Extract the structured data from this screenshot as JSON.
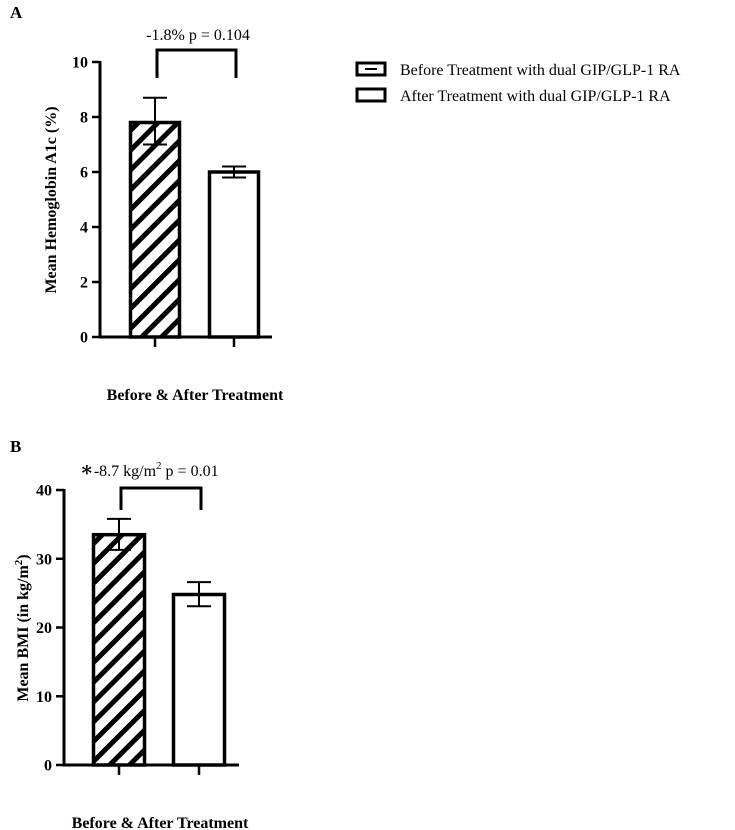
{
  "legend": {
    "entries": [
      {
        "label": "Before Treatment with dual GIP/GLP-1 RA",
        "pattern": "hatched"
      },
      {
        "label": "After Treatment with dual GIP/GLP-1 RA",
        "pattern": "open"
      }
    ]
  },
  "chart_data": [
    {
      "type": "bar",
      "panel_label": "A",
      "ylabel": "Mean Hemoglobin  A1c (%)",
      "xlabel": "Before & After Treatment",
      "ylim": [
        0,
        10
      ],
      "yticks": [
        "0",
        "2",
        "4",
        "6",
        "8",
        "10"
      ],
      "categories": [
        "Before Treatment with dual GIP/GLP-1 RA",
        "After Treatment with dual GIP/GLP-1 RA"
      ],
      "values": [
        7.8,
        6.0
      ],
      "error_low": [
        7.0,
        5.8
      ],
      "error_high": [
        8.7,
        6.2
      ],
      "annotation": {
        "asterisk": "",
        "text": "-1.8%  p = 0.104"
      }
    },
    {
      "type": "bar",
      "panel_label": "B",
      "ylabel": "Mean BMI (in kg/m",
      "ylabel_sup": "2",
      "ylabel_end": ")",
      "xlabel": "Before & After Treatment",
      "ylim": [
        0,
        40
      ],
      "yticks": [
        "0",
        "10",
        "20",
        "30",
        "40"
      ],
      "categories": [
        "Before Treatment with dual GIP/GLP-1 RA",
        "After Treatment with dual GIP/GLP-1 RA"
      ],
      "values": [
        33.5,
        24.8
      ],
      "error_low": [
        31.3,
        23.1
      ],
      "error_high": [
        35.8,
        26.6
      ],
      "annotation": {
        "asterisk": "∗",
        "text": "-8.7 kg/m",
        "sup": "2",
        "text_end": " p = 0.01"
      }
    }
  ]
}
